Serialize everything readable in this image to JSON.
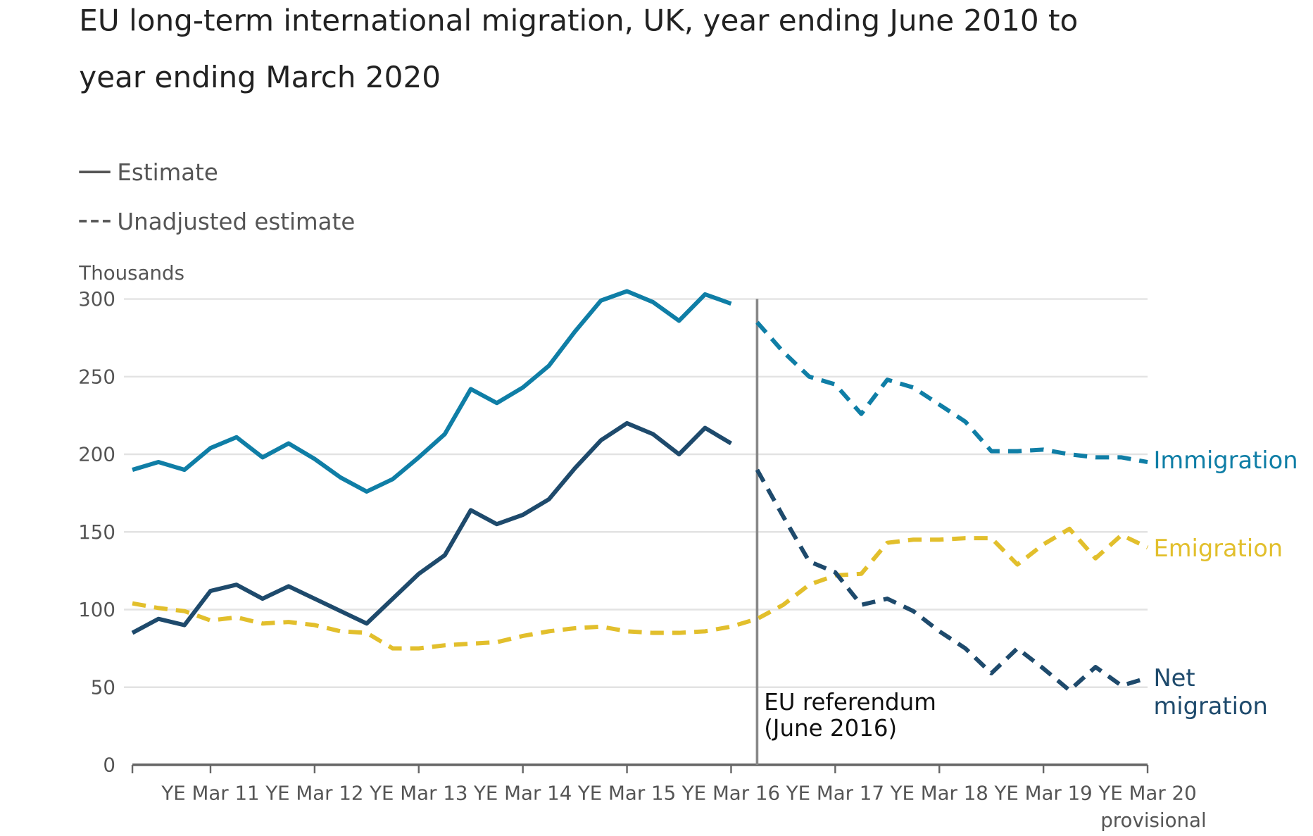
{
  "chart_data": {
    "type": "line",
    "title": "EU long-term international migration, UK, year ending June 2010 to year ending March 2020",
    "title_lines": [
      "EU long-term international migration, UK, year ending June 2010 to",
      "year ending March 2020"
    ],
    "ylabel": "Thousands",
    "ylim": [
      0,
      300
    ],
    "yticks": [
      0,
      50,
      100,
      150,
      200,
      250,
      300
    ],
    "grid": true,
    "xticks": [
      "YE Mar 11",
      "YE Mar 12",
      "YE Mar 13",
      "YE Mar 14",
      "YE Mar 15",
      "YE Mar 16",
      "YE Mar 17",
      "YE Mar 18",
      "YE Mar 19",
      "YE Mar 20"
    ],
    "xtick_note": "provisional",
    "x_start": "YE Jun 10",
    "x_end": "YE Mar 20",
    "x_frequency": "quarterly",
    "legend": {
      "placement": "top-left",
      "items": [
        {
          "label": "Estimate",
          "style": "solid"
        },
        {
          "label": "Unadjusted estimate",
          "style": "dashed"
        }
      ]
    },
    "annotation": {
      "lines": [
        "EU referendum",
        "(June 2016)"
      ],
      "x": "YE Jun 16"
    },
    "series": [
      {
        "name": "Immigration",
        "color": "#0f7ea6",
        "estimate": [
          190,
          195,
          190,
          204,
          211,
          198,
          207,
          197,
          185,
          176,
          184,
          198,
          213,
          242,
          233,
          243,
          257,
          279,
          299,
          305,
          298,
          286,
          303,
          297
        ],
        "unadjusted": [
          285,
          266,
          250,
          245,
          226,
          248,
          243,
          232,
          221,
          202,
          202,
          203,
          200,
          198,
          198,
          195
        ]
      },
      {
        "name": "Emigration",
        "color": "#e2bf2c",
        "estimate": [],
        "unadjusted": [
          104,
          101,
          99,
          93,
          95,
          91,
          92,
          90,
          86,
          85,
          75,
          75,
          77,
          78,
          79,
          83,
          86,
          88,
          89,
          86,
          85,
          85,
          86,
          89,
          94,
          103,
          116,
          122,
          123,
          143,
          145,
          145,
          146,
          146,
          129,
          142,
          152,
          133,
          148,
          140
        ]
      },
      {
        "name": "Net migration",
        "name_lines": [
          "Net",
          "migration"
        ],
        "color": "#1e4a6c",
        "estimate": [
          85,
          94,
          90,
          112,
          116,
          107,
          115,
          107,
          99,
          91,
          107,
          123,
          135,
          164,
          155,
          161,
          171,
          191,
          209,
          220,
          213,
          200,
          217,
          207
        ],
        "unadjusted": [
          190,
          160,
          131,
          124,
          103,
          107,
          99,
          86,
          75,
          59,
          75,
          62,
          48,
          63,
          51,
          56
        ]
      }
    ]
  }
}
